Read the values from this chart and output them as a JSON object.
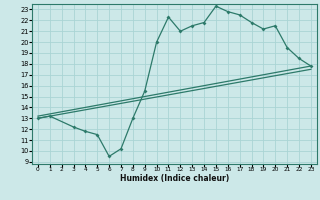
{
  "xlabel": "Humidex (Indice chaleur)",
  "bg_color": "#cce8e8",
  "grid_color": "#aad4d4",
  "line_color": "#2d7a6a",
  "xlim": [
    -0.5,
    23.5
  ],
  "ylim": [
    8.8,
    23.5
  ],
  "xticks": [
    0,
    1,
    2,
    3,
    4,
    5,
    6,
    7,
    8,
    9,
    10,
    11,
    12,
    13,
    14,
    15,
    16,
    17,
    18,
    19,
    20,
    21,
    22,
    23
  ],
  "yticks": [
    9,
    10,
    11,
    12,
    13,
    14,
    15,
    16,
    17,
    18,
    19,
    20,
    21,
    22,
    23
  ],
  "curve_x": [
    0,
    1,
    3,
    4,
    5,
    6,
    7,
    8,
    9,
    10,
    11,
    12,
    13,
    14,
    15,
    16,
    17,
    18,
    19,
    20,
    21,
    22,
    23
  ],
  "curve_y": [
    13.0,
    13.2,
    12.2,
    11.8,
    11.5,
    9.5,
    10.2,
    13.0,
    15.5,
    20.0,
    22.3,
    21.0,
    21.5,
    21.8,
    23.3,
    22.8,
    22.5,
    21.8,
    21.2,
    21.5,
    19.5,
    18.5,
    17.8
  ],
  "line1_x": [
    0,
    23
  ],
  "line1_y": [
    13.0,
    17.5
  ],
  "line2_x": [
    0,
    23
  ],
  "line2_y": [
    13.2,
    17.8
  ]
}
